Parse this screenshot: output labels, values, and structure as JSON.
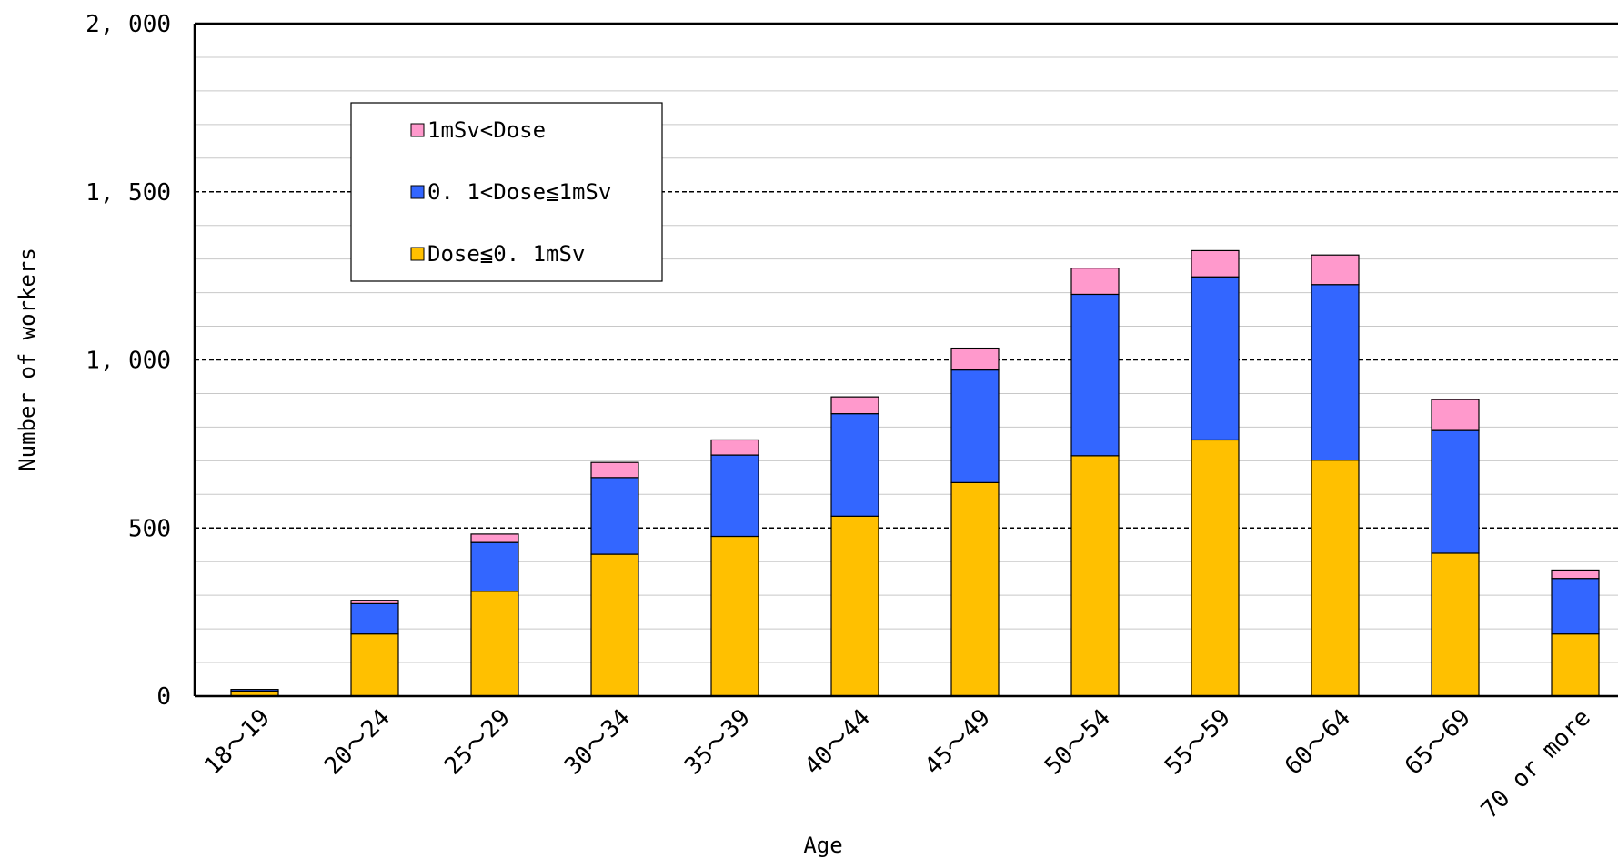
{
  "chart_data": {
    "type": "bar",
    "stacked": true,
    "xlabel": "Age",
    "ylabel": "Number of workers",
    "ylim": [
      0,
      2000
    ],
    "y_ticks": [
      0,
      500,
      1000,
      1500,
      2000
    ],
    "y_tick_labels": [
      "0",
      "500",
      "1, 000",
      "1, 500",
      "2, 000"
    ],
    "grid": "dashed major lines every 500, light minor lines every 100",
    "legend_position": "top-left",
    "categories": [
      "18～19",
      "20～24",
      "25～29",
      "30～34",
      "35～39",
      "40～44",
      "45～49",
      "50～54",
      "55～59",
      "60～64",
      "65～69",
      "70 or more"
    ],
    "series": [
      {
        "name": "Dose≦0. 1mSv",
        "color": "#FFC000",
        "values": [
          15,
          185,
          312,
          422,
          475,
          535,
          635,
          715,
          762,
          702,
          425,
          185
        ]
      },
      {
        "name": "0. 1<Dose≦1mSv",
        "color": "#3366FF",
        "values": [
          5,
          90,
          145,
          228,
          242,
          305,
          335,
          480,
          485,
          522,
          365,
          165
        ]
      },
      {
        "name": "1mSv<Dose",
        "color": "#FF99CC",
        "values": [
          0,
          10,
          25,
          45,
          45,
          50,
          65,
          78,
          78,
          88,
          92,
          25
        ]
      }
    ],
    "legend_order": [
      2,
      1,
      0
    ]
  }
}
